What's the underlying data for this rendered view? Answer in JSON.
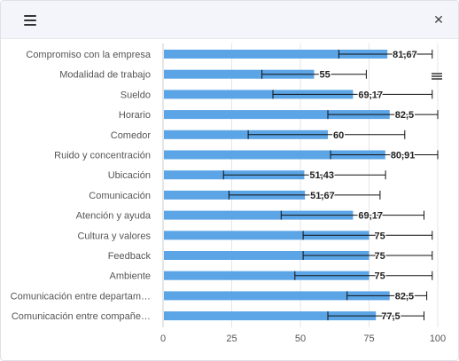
{
  "close_glyph": "✕",
  "chart_data": {
    "type": "bar",
    "orientation": "horizontal",
    "title": "",
    "xlabel": "",
    "ylabel": "",
    "xlim": [
      0,
      100
    ],
    "x_ticks": [
      0,
      25,
      50,
      75,
      100
    ],
    "grid": true,
    "legend": "none",
    "bar_color": "#5ba4e6",
    "categories": [
      "Compromiso con la empresa",
      "Modalidad de trabajo",
      "Sueldo",
      "Horario",
      "Comedor",
      "Ruido y concentración",
      "Ubicación",
      "Comunicación",
      "Atención y ayuda",
      "Cultura y valores",
      "Feedback",
      "Ambiente",
      "Comunicación entre departam…",
      "Comunicación entre compañe…"
    ],
    "values": [
      81.67,
      55,
      69.17,
      82.5,
      60,
      80.91,
      51.43,
      51.67,
      69.17,
      75,
      75,
      75,
      82.5,
      77.5
    ],
    "value_labels": [
      "81,67",
      "55",
      "69,17",
      "82,5",
      "60",
      "80,91",
      "51,43",
      "51,67",
      "69,17",
      "75",
      "75",
      "75",
      "82,5",
      "77,5"
    ],
    "error_low": [
      64,
      36,
      40,
      60,
      31,
      61,
      22,
      24,
      43,
      51,
      51,
      48,
      67,
      60
    ],
    "error_high": [
      98,
      74,
      98,
      100,
      88,
      100,
      81,
      79,
      95,
      98,
      98,
      98,
      96,
      95
    ]
  }
}
